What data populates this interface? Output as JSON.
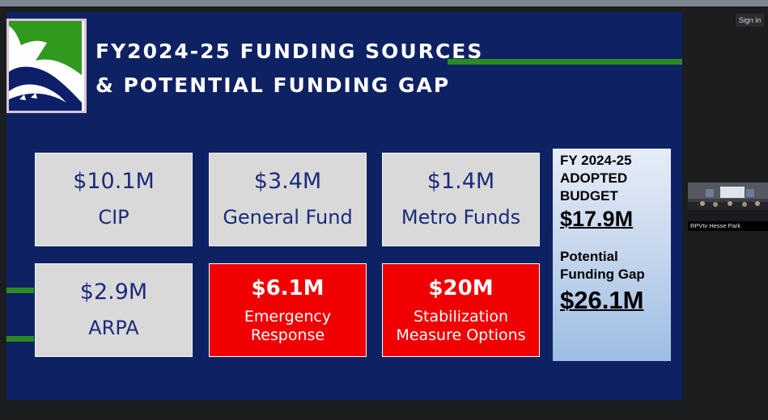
{
  "slide": {
    "title_line1": "FY2024-25 FUNDING SOURCES",
    "title_line2": "& POTENTIAL FUNDING GAP",
    "boxes": [
      {
        "amount": "$10.1M",
        "label": "CIP"
      },
      {
        "amount": "$3.4M",
        "label": "General Fund"
      },
      {
        "amount": "$1.4M",
        "label": "Metro Funds"
      },
      {
        "amount": "$2.9M",
        "label": "ARPA"
      },
      {
        "amount": "$6.1M",
        "label_line1": "Emergency",
        "label_line2": "Response"
      },
      {
        "amount": "$20M",
        "label_line1": "Stabilization",
        "label_line2": "Measure Options"
      }
    ],
    "budget_panel": {
      "head_line1": "FY 2024-25",
      "head_line2": "ADOPTED",
      "head_line3": "BUDGET",
      "budget_amount": "$17.9M",
      "gap_line1": "Potential",
      "gap_line2": "Funding Gap",
      "gap_amount": "$26.1M"
    }
  },
  "viewer": {
    "sign_in_label": "Sign in",
    "participant_caption": "RPVtv Hesse Park"
  },
  "colors": {
    "slide_bg": "#0e2263",
    "box_gray": "#d9d9d9",
    "box_red": "#f00000",
    "accent_green": "#2c8a24",
    "text_blue": "#1b2b7a"
  }
}
